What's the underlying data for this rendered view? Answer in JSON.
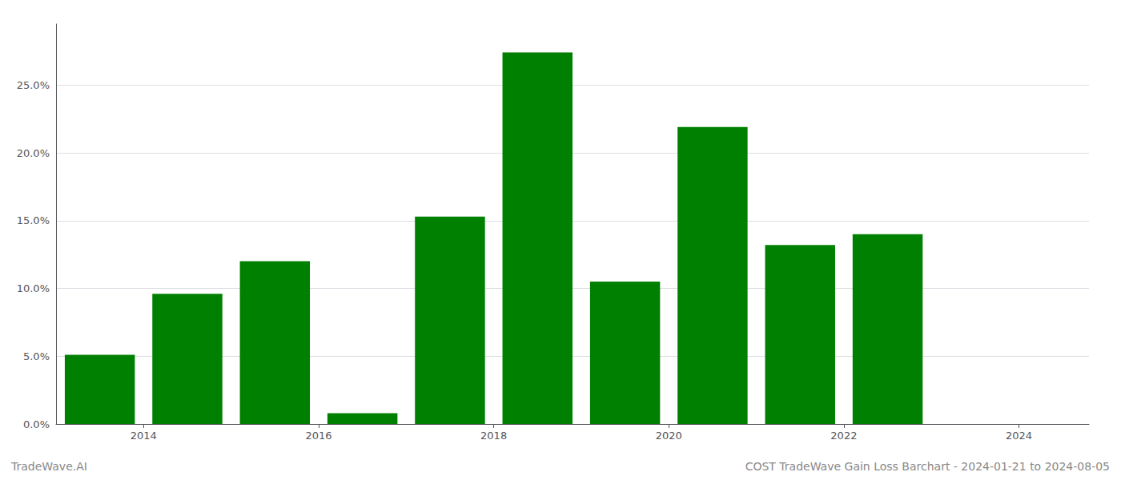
{
  "chart_data": {
    "type": "bar",
    "x": [
      2013.5,
      2014.5,
      2015.5,
      2016.5,
      2017.5,
      2018.5,
      2019.5,
      2020.5,
      2021.5,
      2022.5
    ],
    "values": [
      0.051,
      0.096,
      0.12,
      0.008,
      0.153,
      0.274,
      0.105,
      0.219,
      0.132,
      0.14
    ],
    "color": "#008000",
    "xlim": [
      2013.0,
      2024.8
    ],
    "xticks": [
      2014,
      2016,
      2018,
      2020,
      2022,
      2024
    ],
    "ylim": [
      0,
      0.295
    ],
    "yticks": [
      {
        "value": 0.0,
        "label": "0.0%"
      },
      {
        "value": 0.05,
        "label": "5.0%"
      },
      {
        "value": 0.1,
        "label": "10.0%"
      },
      {
        "value": 0.15,
        "label": "15.0%"
      },
      {
        "value": 0.2,
        "label": "20.0%"
      },
      {
        "value": 0.25,
        "label": "25.0%"
      }
    ],
    "grid": true,
    "annotations": [
      "TradeWave.AI",
      "COST TradeWave Gain Loss Barchart - 2024-01-21 to 2024-08-05"
    ]
  }
}
